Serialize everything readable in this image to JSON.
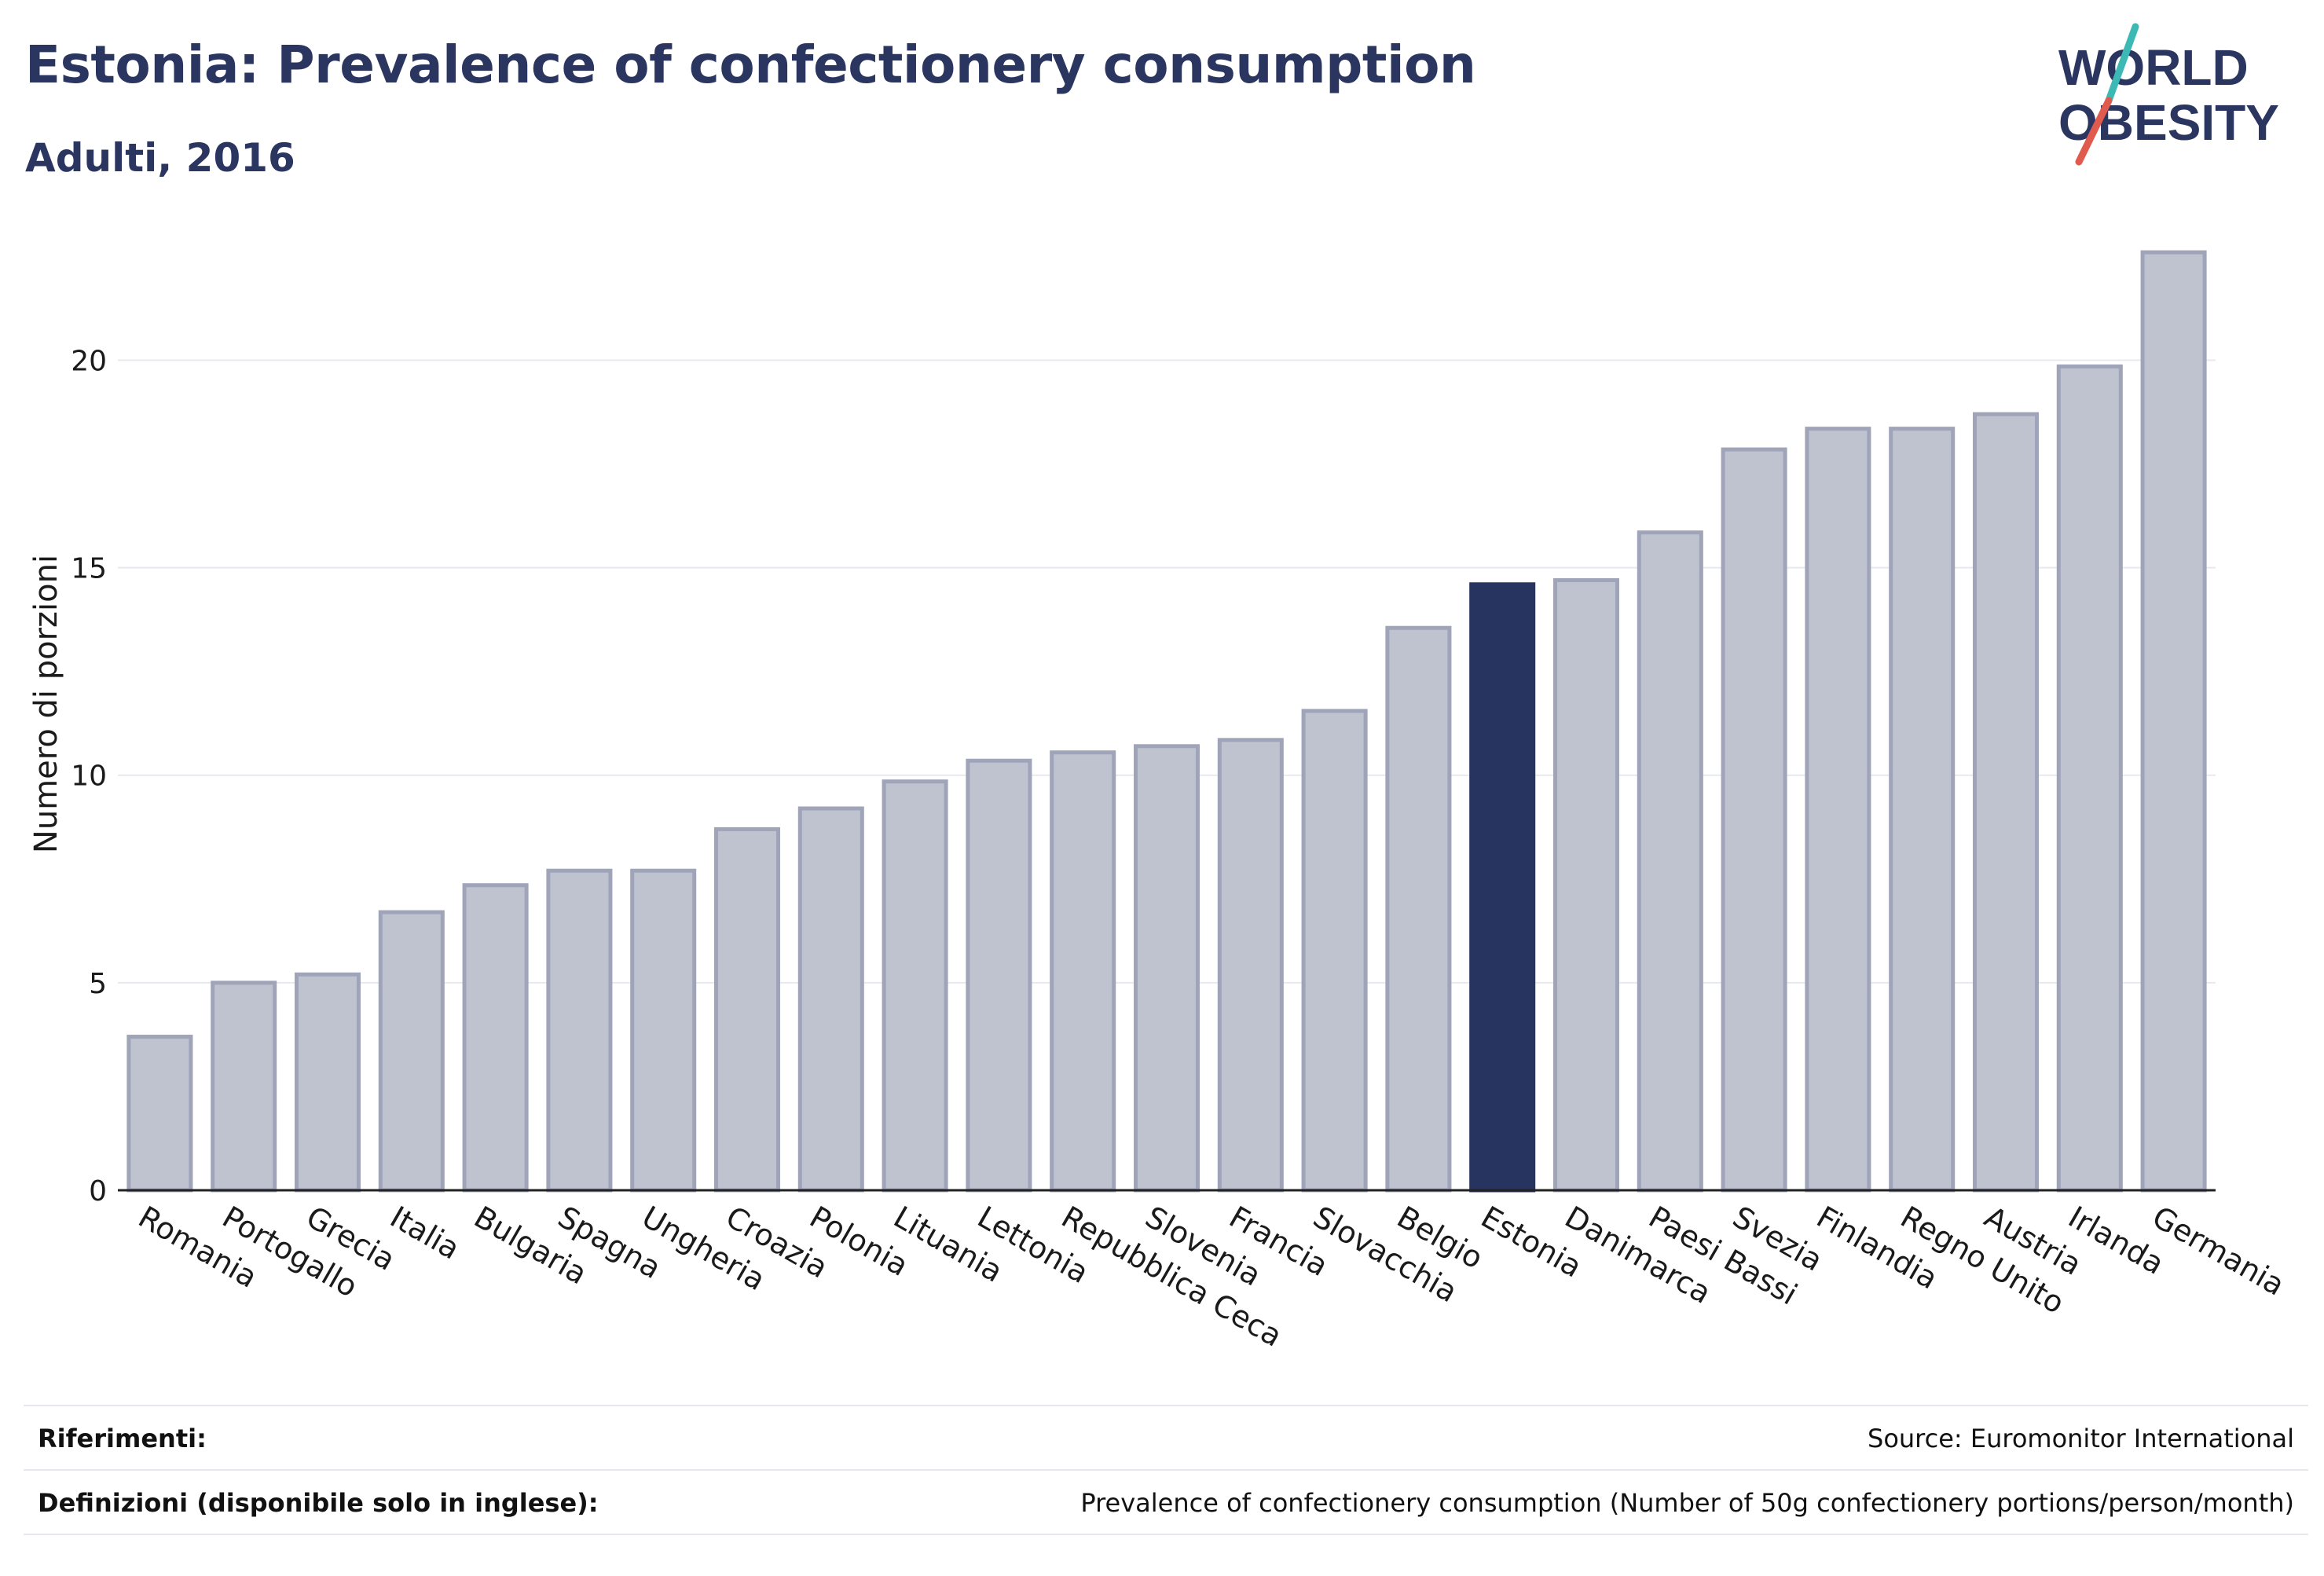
{
  "header": {
    "title": "Estonia: Prevalence of confectionery consumption",
    "subtitle": "Adulti, 2016"
  },
  "logo": {
    "line1": "WORLD",
    "line2": "OBESITY",
    "slash_colors": [
      "#3cb8b5",
      "#e05a4e"
    ]
  },
  "chart_data": {
    "type": "bar",
    "categories": [
      "Romania",
      "Portogallo",
      "Grecia",
      "Italia",
      "Bulgaria",
      "Spagna",
      "Ungheria",
      "Croazia",
      "Polonia",
      "Lituania",
      "Lettonia",
      "Repubblica Ceca",
      "Slovenia",
      "Francia",
      "Slovacchia",
      "Belgio",
      "Estonia",
      "Danimarca",
      "Paesi Bassi",
      "Svezia",
      "Finlandia",
      "Regno Unito",
      "Austria",
      "Irlanda",
      "Germania"
    ],
    "values": [
      3.7,
      5.0,
      5.2,
      6.7,
      7.35,
      7.7,
      7.7,
      8.7,
      9.2,
      9.85,
      10.35,
      10.55,
      10.7,
      10.85,
      11.55,
      13.55,
      14.6,
      14.7,
      15.85,
      17.85,
      18.35,
      18.35,
      18.7,
      19.85,
      22.6
    ],
    "highlight": "Estonia",
    "ylabel": "Numero di porzioni",
    "xlabel": "",
    "ylim": [
      0,
      23
    ],
    "yticks": [
      0,
      5,
      10,
      15,
      20
    ],
    "grid": true,
    "colors": {
      "bar_fill": "#bfc2cf",
      "bar_stroke": "#9fa4b8",
      "highlight_fill": "#283460",
      "grid": "#e8e9ee",
      "axis": "#222222"
    }
  },
  "footer": {
    "references_label": "Riferimenti:",
    "references_value": "Source: Euromonitor International",
    "definitions_label": "Definizioni (disponibile solo in inglese):",
    "definitions_value": "Prevalence of confectionery consumption (Number of 50g confectionery portions/person/month)"
  }
}
